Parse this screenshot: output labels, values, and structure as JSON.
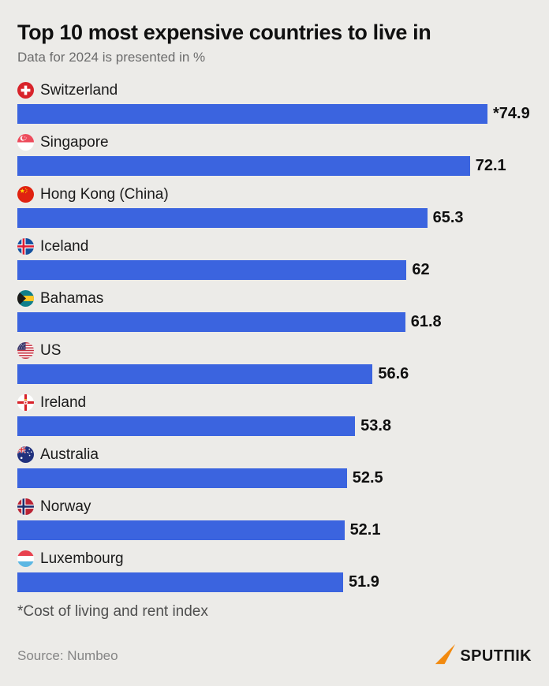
{
  "page": {
    "background": "#ECEBE8",
    "title": "Top 10 most expensive countries to live in",
    "subtitle": "Data for 2024 is presented in %",
    "footnote": "*Cost of living and rent index",
    "source": "Source: Numbeo"
  },
  "logo": {
    "brand": "Sputnik",
    "text": "SPUTΠIK",
    "arrow_color": "#F7941D",
    "text_color": "#161616"
  },
  "chart_data": {
    "type": "bar",
    "orientation": "horizontal",
    "title": "Top 10 most expensive countries to live in",
    "subtitle": "Data for 2024 is presented in %",
    "unit": "%",
    "xlim": [
      0,
      74.9
    ],
    "grid": false,
    "legend": false,
    "bar_color": "#3B64DF",
    "categories": [
      "Switzerland",
      "Singapore",
      "Hong Kong (China)",
      "Iceland",
      "Bahamas",
      "US",
      "Ireland",
      "Australia",
      "Norway",
      "Luxembourg"
    ],
    "values": [
      74.9,
      72.1,
      65.3,
      62,
      61.8,
      56.6,
      53.8,
      52.5,
      52.1,
      51.9
    ],
    "value_labels": [
      "*74.9",
      "72.1",
      "65.3",
      "62",
      "61.8",
      "56.6",
      "53.8",
      "52.5",
      "52.1",
      "51.9"
    ],
    "flags": [
      "switzerland-flag",
      "singapore-flag",
      "china-flag",
      "iceland-flag",
      "bahamas-flag",
      "us-flag",
      "northern-ireland-flag",
      "australia-flag",
      "norway-flag",
      "luxembourg-flag"
    ],
    "footnote": "*Cost of living and rent index",
    "source": "Numbeo"
  }
}
